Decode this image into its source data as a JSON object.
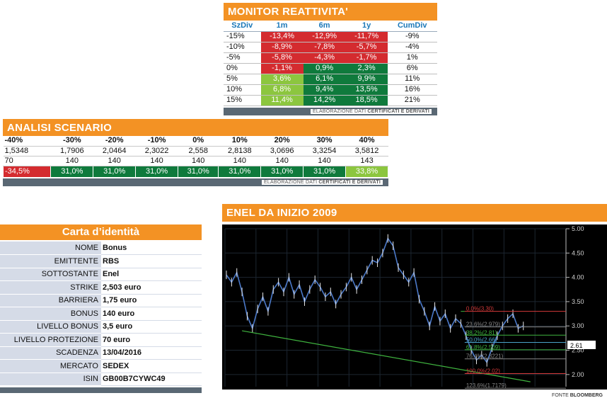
{
  "monitor": {
    "title": "MONITOR REATTIVITA'",
    "headers": [
      "SzDiv",
      "1m",
      "6m",
      "1y",
      "CumDiv"
    ],
    "rows": [
      {
        "label": "-15%",
        "v1m": "-13,4%",
        "v6m": "-12,9%",
        "v1y": "-11,7%",
        "cum": "-9%",
        "c": [
          "red",
          "red",
          "red"
        ]
      },
      {
        "label": "-10%",
        "v1m": "-8,9%",
        "v6m": "-7,8%",
        "v1y": "-5,7%",
        "cum": "-4%",
        "c": [
          "red",
          "red",
          "red"
        ]
      },
      {
        "label": "-5%",
        "v1m": "-5,8%",
        "v6m": "-4,3%",
        "v1y": "-1,7%",
        "cum": "1%",
        "c": [
          "red",
          "red",
          "red"
        ]
      },
      {
        "label": "0%",
        "v1m": "-1,1%",
        "v6m": "0,9%",
        "v1y": "2,3%",
        "cum": "6%",
        "c": [
          "red",
          "dgreen",
          "dgreen"
        ]
      },
      {
        "label": "5%",
        "v1m": "3,6%",
        "v6m": "6,1%",
        "v1y": "9,9%",
        "cum": "11%",
        "c": [
          "lgreen",
          "dgreen",
          "dgreen"
        ]
      },
      {
        "label": "10%",
        "v1m": "6,8%",
        "v6m": "9,4%",
        "v1y": "13,5%",
        "cum": "16%",
        "c": [
          "lgreen",
          "dgreen",
          "dgreen"
        ]
      },
      {
        "label": "15%",
        "v1m": "11,4%",
        "v6m": "14,2%",
        "v1y": "18,5%",
        "cum": "21%",
        "c": [
          "lgreen",
          "dgreen",
          "dgreen"
        ]
      }
    ],
    "footer_pre": "ELABORAZIONE DATI ",
    "footer_bold": "CERTIFICATI E DERIVATI"
  },
  "scenario": {
    "title": "ANALISI SCENARIO",
    "headers": [
      "-40%",
      "-30%",
      "-20%",
      "-10%",
      "0%",
      "10%",
      "20%",
      "30%",
      "40%"
    ],
    "prices": [
      "1,5348",
      "1,7906",
      "2,0464",
      "2,3022",
      "2,558",
      "2,8138",
      "3,0696",
      "3,3254",
      "3,5812"
    ],
    "payoffs": [
      "70",
      "140",
      "140",
      "140",
      "140",
      "140",
      "140",
      "140",
      "143"
    ],
    "results": [
      "-34,5%",
      "31,0%",
      "31,0%",
      "31,0%",
      "31,0%",
      "31,0%",
      "31,0%",
      "31,0%",
      "33,8%"
    ],
    "result_colors": [
      "red",
      "dgreen",
      "dgreen",
      "dgreen",
      "dgreen",
      "dgreen",
      "dgreen",
      "dgreen",
      "lgreen"
    ],
    "footer_pre": "ELABORAZIONE DATI ",
    "footer_bold": "CERTIFICATI E DERIVATI"
  },
  "carta": {
    "title": "Carta d’identità",
    "rows": [
      {
        "k": "NOME",
        "v": "Bonus"
      },
      {
        "k": "EMITTENTE",
        "v": "RBS"
      },
      {
        "k": "SOTTOSTANTE",
        "v": "Enel"
      },
      {
        "k": "STRIKE",
        "v": "2,503 euro"
      },
      {
        "k": "BARRIERA",
        "v": "1,75 euro"
      },
      {
        "k": "BONUS",
        "v": "140 euro"
      },
      {
        "k": "LIVELLO BONUS",
        "v": "3,5 euro"
      },
      {
        "k": "LIVELLO PROTEZIONE",
        "v": "70 euro"
      },
      {
        "k": "SCADENZA",
        "v": "13/04/2016"
      },
      {
        "k": "MERCATO",
        "v": "SEDEX"
      },
      {
        "k": "ISIN",
        "v": "GB00B7CYWC49"
      }
    ]
  },
  "enel": {
    "title": "ENEL DA INIZIO 2009",
    "footer_pre": "FONTE ",
    "footer_bold": "BLOOMBERG",
    "last_price_label": "2.61",
    "colors": {
      "price": "#4b79c9",
      "trend": "#3fb43f",
      "fib0": "#d43a3a",
      "fib236": "#888888",
      "fib382": "#3fb43f",
      "fib50": "#4aa3c9",
      "fib618": "#3fb43f",
      "fib100": "#d43a3a"
    },
    "fib_labels": [
      "0.0%(3.30)",
      "23.6%(2.979)",
      "38.2%(2.81)",
      "50.0%(2.66)",
      "61.8%(2.509)",
      "76.4%(2.3221)",
      "100.0%(2.02)",
      "123.6%(1.7179)"
    ],
    "chart_data": {
      "type": "line",
      "ylim": [
        1.75,
        5.0
      ],
      "yticks": [
        "5.00",
        "4.50",
        "4.00",
        "3.50",
        "3.00",
        "2.50",
        "2.00"
      ],
      "series": [
        {
          "values": [
            4.05,
            3.9,
            4.1,
            3.7,
            3.2,
            2.95,
            3.35,
            3.6,
            3.3,
            3.75,
            3.9,
            3.7,
            4.0,
            3.65,
            3.85,
            3.5,
            3.75,
            3.95,
            3.8,
            3.6,
            3.7,
            3.45,
            3.65,
            3.8,
            4.0,
            3.75,
            3.95,
            4.15,
            4.35,
            4.3,
            4.5,
            4.8,
            4.65,
            4.2,
            4.05,
            3.9,
            4.1,
            3.55,
            3.3,
            3.0,
            3.4,
            3.1,
            3.25,
            2.95,
            3.15,
            3.05,
            2.8,
            2.5,
            2.3,
            2.4,
            2.25,
            2.55,
            2.8,
            3.0,
            3.15,
            3.25,
            2.95,
            3.0
          ]
        }
      ],
      "fib_levels": [
        3.3,
        2.979,
        2.81,
        2.66,
        2.509,
        2.3221,
        2.02,
        1.7179
      ]
    }
  }
}
